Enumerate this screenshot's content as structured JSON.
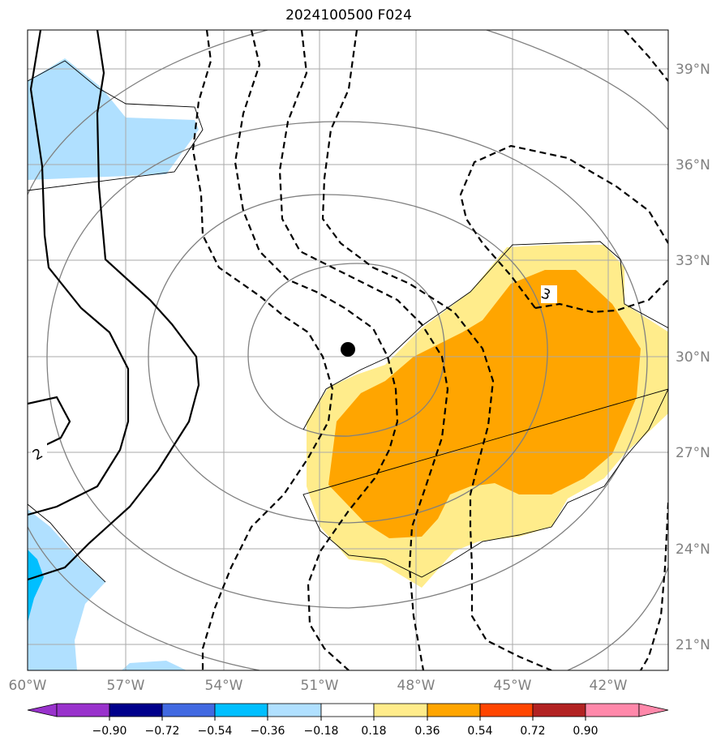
{
  "title": "2024100500 F024",
  "map": {
    "lon_range": [
      -60,
      -40
    ],
    "lat_range": [
      20,
      40
    ],
    "x_ticks": [
      "60°W",
      "57°W",
      "54°W",
      "51°W",
      "48°W",
      "45°W",
      "42°W"
    ],
    "y_ticks": [
      "39°N",
      "36°N",
      "33°N",
      "30°N",
      "27°N",
      "24°N",
      "21°N"
    ],
    "center_marker": {
      "lon": -50.0,
      "lat": 30.2
    },
    "contour_labels": [
      "2",
      "3"
    ],
    "fill_colors": {
      "pos_0_18_0_36": "#ffec8b",
      "pos_0_36_0_54": "#ffa500",
      "neg_0_18_0_36": "#b0e0ff",
      "neg_0_36_0_54": "#00bfff"
    }
  },
  "colorbar": {
    "ticks": [
      "−0.90",
      "−0.72",
      "−0.54",
      "−0.36",
      "−0.18",
      "0.18",
      "0.36",
      "0.54",
      "0.72",
      "0.90"
    ],
    "colors": [
      "#9932cc",
      "#00008b",
      "#4169e1",
      "#00bfff",
      "#b0e0ff",
      "#ffffff",
      "#ffec8b",
      "#ffa500",
      "#ff4500",
      "#b22222",
      "#ff88aa"
    ]
  }
}
